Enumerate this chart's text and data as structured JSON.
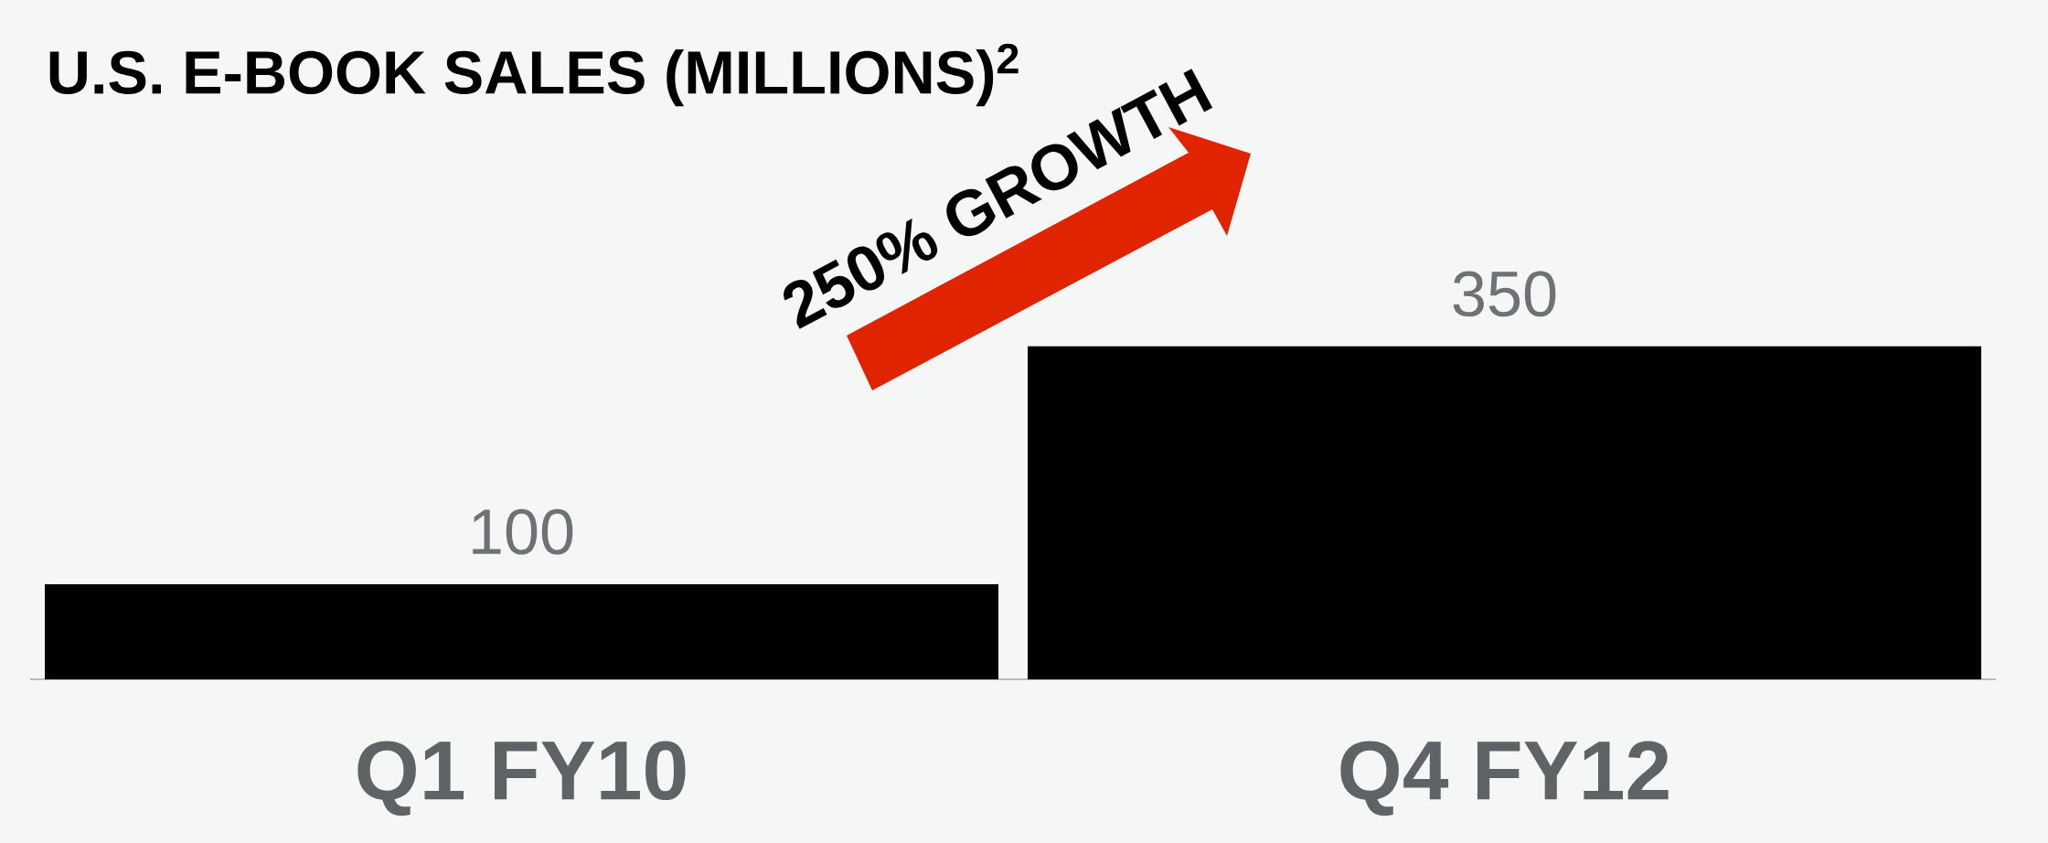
{
  "chart_data": {
    "type": "bar",
    "title": "U.S. E-BOOK SALES (MILLIONS)$^{2}$",
    "categories": [
      "Q1 FY10",
      "Q4 FY12"
    ],
    "values": [
      100,
      350
    ],
    "color": "#000000",
    "data_labels": true,
    "annotations": [
      "250% GROWTH"
    ]
  }
}
